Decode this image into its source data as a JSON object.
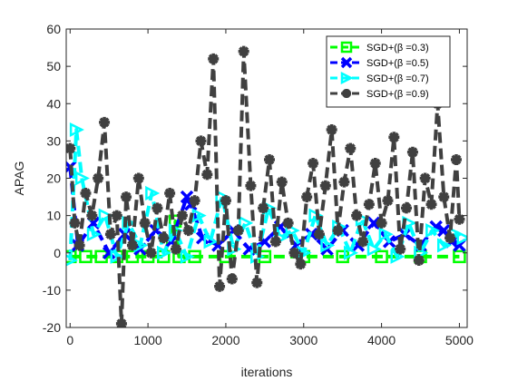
{
  "chart_data": {
    "type": "line",
    "title": "",
    "xlabel": "iterations",
    "ylabel": "APAG",
    "xlim": [
      -50,
      5100
    ],
    "ylim": [
      -20,
      60
    ],
    "xticks": [
      0,
      1000,
      2000,
      3000,
      4000,
      5000
    ],
    "yticks": [
      -20,
      -10,
      0,
      10,
      20,
      30,
      40,
      50,
      60
    ],
    "grid": false,
    "legend_position": "top-right",
    "series": [
      {
        "name": "SGD+(β =0.3)",
        "color": "#00ff00",
        "marker": "square",
        "line_style": "dashed",
        "x": [
          0,
          200,
          400,
          600,
          800,
          1000,
          1200,
          1350,
          1400,
          1600,
          2000,
          2500,
          3000,
          3500,
          4000,
          4500,
          5000
        ],
        "values": [
          -1,
          -1,
          -1,
          -1,
          -1,
          -1,
          -1,
          8.5,
          -1,
          -1,
          -1,
          -1,
          -1,
          -1,
          -1,
          -1,
          -1
        ]
      },
      {
        "name": "SGD+(β =0.5)",
        "color": "#0000ff",
        "marker": "x",
        "line_style": "dashed",
        "x": [
          0,
          100,
          300,
          500,
          700,
          900,
          1100,
          1300,
          1500,
          1550,
          1700,
          1900,
          2100,
          2300,
          2500,
          2700,
          2900,
          3100,
          3300,
          3500,
          3700,
          3900,
          4100,
          4300,
          4500,
          4700,
          4800,
          4900,
          5000
        ],
        "values": [
          23,
          2,
          8,
          0,
          5,
          1,
          6,
          3,
          15,
          13,
          4,
          2,
          6,
          1,
          3,
          7,
          2,
          5,
          1,
          6,
          2,
          8,
          3,
          5,
          2,
          7,
          6,
          3,
          2
        ]
      },
      {
        "name": "SGD+(β =0.7)",
        "color": "#00ffff",
        "marker": "triangle-right",
        "line_style": "dashed",
        "x": [
          0,
          80,
          150,
          300,
          450,
          600,
          750,
          900,
          1050,
          1200,
          1350,
          1500,
          1650,
          1800,
          1950,
          2100,
          2250,
          2400,
          2550,
          2700,
          2850,
          3000,
          3150,
          3300,
          3450,
          3600,
          3750,
          3900,
          4050,
          4200,
          4350,
          4500,
          4650,
          4800,
          4950,
          5050
        ],
        "values": [
          -2,
          33,
          20,
          5,
          10,
          -1,
          8,
          2,
          16,
          0,
          6,
          -1,
          10,
          3,
          15,
          1,
          8,
          -1,
          12,
          4,
          6,
          0,
          10,
          2,
          7,
          0,
          9,
          1,
          5,
          -1,
          8,
          0,
          6,
          2,
          5,
          4
        ]
      },
      {
        "name": "SGD+(β =0.9)",
        "color": "#404040",
        "marker": "star",
        "line_style": "dashed",
        "x": [
          0,
          60,
          120,
          200,
          280,
          360,
          440,
          520,
          600,
          660,
          720,
          800,
          880,
          960,
          1040,
          1120,
          1200,
          1280,
          1360,
          1440,
          1520,
          1600,
          1680,
          1760,
          1840,
          1920,
          2000,
          2080,
          2160,
          2230,
          2320,
          2400,
          2480,
          2560,
          2640,
          2720,
          2800,
          2880,
          2960,
          3040,
          3120,
          3200,
          3280,
          3360,
          3440,
          3520,
          3600,
          3680,
          3760,
          3840,
          3920,
          4000,
          4080,
          4160,
          4240,
          4320,
          4400,
          4480,
          4560,
          4640,
          4720,
          4800,
          4880,
          4960,
          5000
        ],
        "values": [
          28,
          8,
          2,
          16,
          10,
          20,
          35,
          5,
          10,
          -19,
          15,
          2,
          20,
          8,
          0,
          12,
          4,
          16,
          1,
          10,
          6,
          14,
          30,
          21,
          52,
          -9,
          14,
          -7,
          6,
          54,
          18,
          -8,
          12,
          25,
          3,
          19,
          8,
          0,
          -3,
          15,
          24,
          5,
          18,
          33,
          6,
          19,
          28,
          10,
          3,
          13,
          24,
          8,
          14,
          31,
          1,
          12,
          27,
          -2,
          20,
          13,
          40,
          15,
          4,
          25,
          9
        ]
      }
    ]
  }
}
